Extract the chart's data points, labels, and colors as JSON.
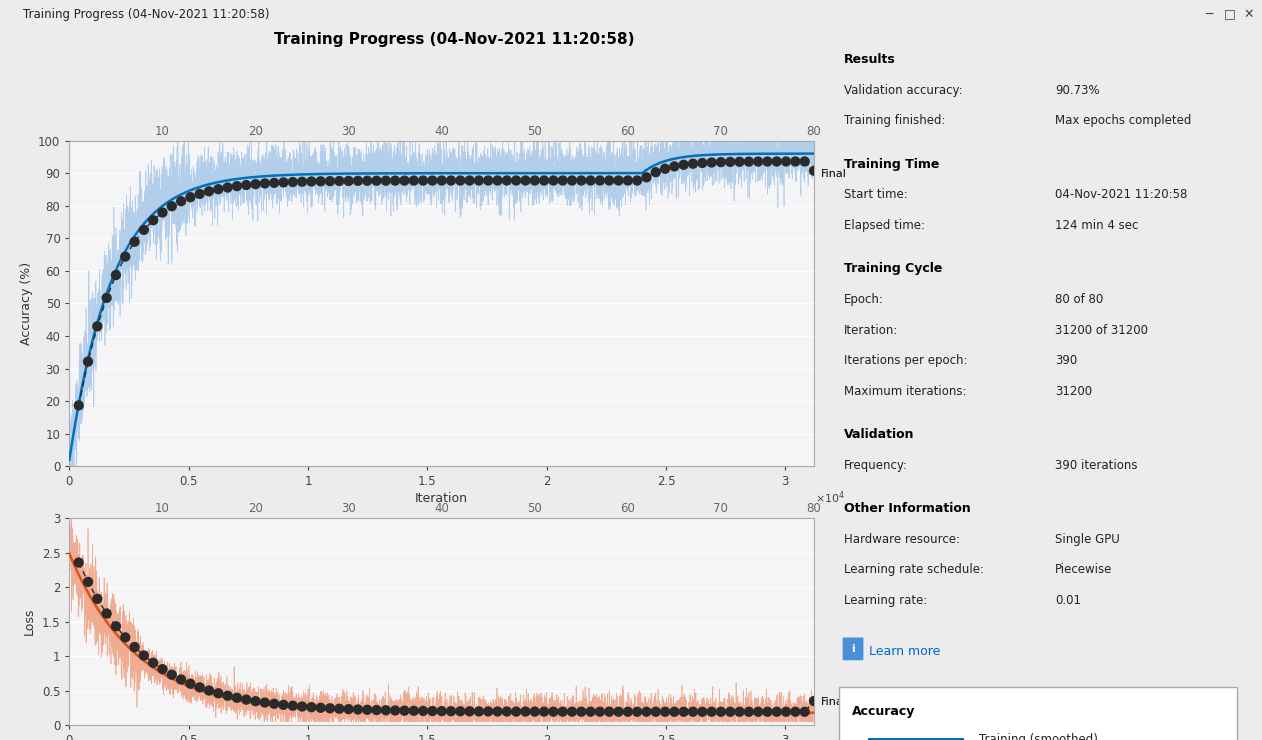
{
  "title": "Training Progress (04-Nov-2021 11:20:58)",
  "window_title": "Training Progress (04-Nov-2021 11:20:58)",
  "max_iter": 31200,
  "n_epochs": 80,
  "iter_per_epoch": 390,
  "n_validation": 80,
  "acc_ylim": [
    0,
    100
  ],
  "acc_yticks": [
    0,
    10,
    20,
    30,
    40,
    50,
    60,
    70,
    80,
    90,
    100
  ],
  "loss_ylim": [
    0,
    3
  ],
  "loss_yticks": [
    0,
    0.5,
    1.0,
    1.5,
    2.0,
    2.5,
    3.0
  ],
  "xlabel": "Iteration",
  "acc_ylabel": "Accuracy (%)",
  "loss_ylabel": "Loss",
  "epoch_ticks": [
    10,
    20,
    30,
    40,
    50,
    60,
    70,
    80
  ],
  "x_ticks_iter": [
    0,
    0.5,
    1.0,
    1.5,
    2.0,
    2.5,
    3.0
  ],
  "x_ticks_iter_label": [
    "0",
    "0.5",
    "1",
    "1.5",
    "2",
    "2.5",
    "3"
  ],
  "color_train_smooth_acc": "#0072BD",
  "color_train_raw_acc": "#A8C8E8",
  "color_val_acc": "#2A2A2A",
  "color_train_smooth_loss": "#D95319",
  "color_train_raw_loss": "#F0A080",
  "color_val_loss": "#2A2A2A",
  "bg_color": "#ECECEC",
  "plot_bg_color": "#E8E8F0",
  "panel_bg_color": "#ECECEC",
  "grid_color": "#FFFFFF",
  "titlebar_bg": "#F0F0F0",
  "results_section": {
    "Results": [
      [
        "Validation accuracy:",
        "90.73%"
      ],
      [
        "Training finished:",
        "Max epochs completed"
      ]
    ],
    "Training Time": [
      [
        "Start time:",
        "04-Nov-2021 11:20:58"
      ],
      [
        "Elapsed time:",
        "124 min 4 sec"
      ]
    ],
    "Training Cycle": [
      [
        "Epoch:",
        "80 of 80"
      ],
      [
        "Iteration:",
        "31200 of 31200"
      ],
      [
        "Iterations per epoch:",
        "390"
      ],
      [
        "Maximum iterations:",
        "31200"
      ]
    ],
    "Validation": [
      [
        "Frequency:",
        "390 iterations"
      ]
    ],
    "Other Information": [
      [
        "Hardware resource:",
        "Single GPU"
      ],
      [
        "Learning rate schedule:",
        "Piecewise"
      ],
      [
        "Learning rate:",
        "0.01"
      ]
    ]
  }
}
